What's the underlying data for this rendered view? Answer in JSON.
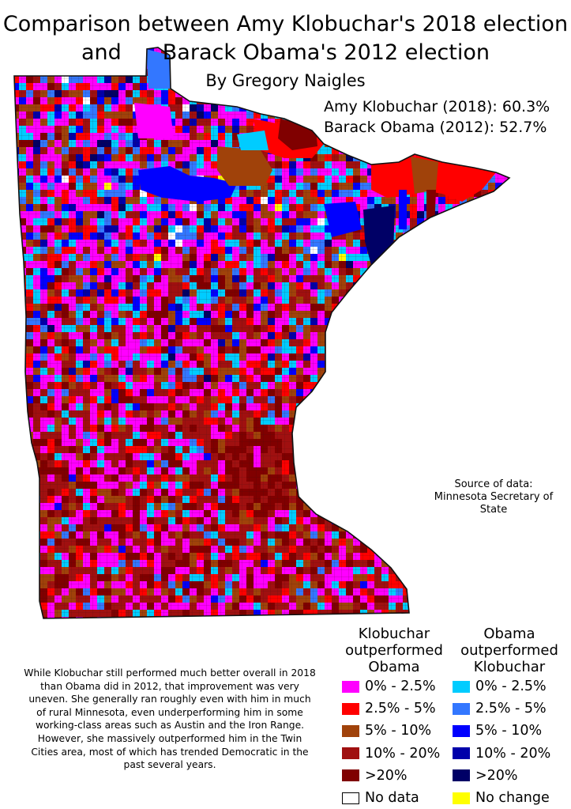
{
  "title": {
    "line1": "Comparison between Amy Klobuchar's 2018 election",
    "line2_a": "and",
    "line2_b": "Barack Obama's 2012 election",
    "author": "By Gregory Naigles"
  },
  "results": {
    "klobuchar": "Amy Klobuchar (2018): 60.3%",
    "obama": "Barack Obama (2012): 52.7%"
  },
  "source": {
    "line1": "Source of data:",
    "line2": "Minnesota Secretary of",
    "line3": "State"
  },
  "note": "While Klobuchar still performed much better overall in 2018 than Obama did in 2012, that improvement was very uneven. She generally ran roughly even with him in much of rural Minnesota, even underperforming him in some working-class areas such as Austin and the Iron Range. However, she massively outperformed him in the Twin Cities area, most of which has trended Democratic in the past several years.",
  "legend": {
    "klobuchar_heading": [
      "Klobuchar",
      "outperformed",
      "Obama"
    ],
    "obama_heading": [
      "Obama",
      "outperformed",
      "Klobuchar"
    ],
    "klobuchar_items": [
      {
        "label": "0% - 2.5%",
        "color": "#ff00ff"
      },
      {
        "label": "2.5% - 5%",
        "color": "#ff0000"
      },
      {
        "label": "5% - 10%",
        "color": "#a0420a"
      },
      {
        "label": "10% - 20%",
        "color": "#a01010"
      },
      {
        "label": ">20%",
        "color": "#800000"
      }
    ],
    "obama_items": [
      {
        "label": "0% - 2.5%",
        "color": "#00ccff"
      },
      {
        "label": "2.5% - 5%",
        "color": "#3377ff"
      },
      {
        "label": "5% - 10%",
        "color": "#0000ff"
      },
      {
        "label": "10% - 20%",
        "color": "#0000aa"
      },
      {
        "label": ">20%",
        "color": "#000066"
      }
    ],
    "no_data": {
      "label": "No data",
      "color": "#ffffff"
    },
    "no_change": {
      "label": "No change",
      "color": "#ffff00"
    }
  }
}
